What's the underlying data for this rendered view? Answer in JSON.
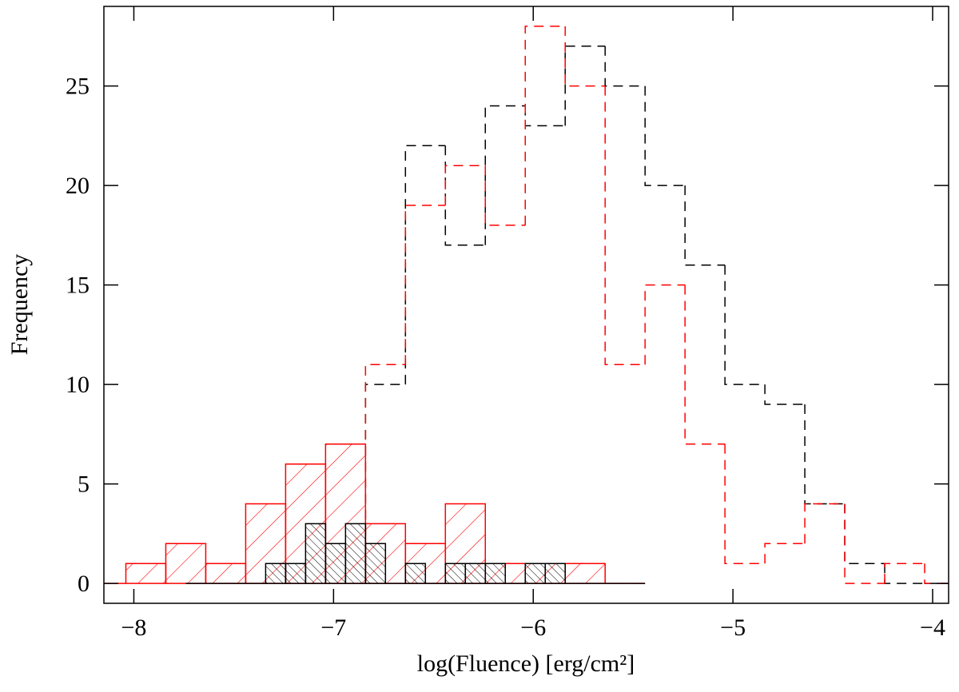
{
  "chart_data": {
    "type": "histogram",
    "x_label": "log(Fluence) [erg/cm²]",
    "y_label": "Frequency",
    "xlim": [
      -8.15,
      -3.92
    ],
    "ylim": [
      -1,
      29
    ],
    "xticks": [
      {
        "value": -8,
        "label": "−8"
      },
      {
        "value": -7,
        "label": "−7"
      },
      {
        "value": -6,
        "label": "−6"
      },
      {
        "value": -5,
        "label": "−5"
      },
      {
        "value": -4,
        "label": "−4"
      }
    ],
    "yticks": [
      0,
      5,
      10,
      15,
      20,
      25
    ],
    "series": [
      {
        "color": "#000000",
        "style": "dashed",
        "bins": [
          -6.84,
          -6.64,
          -6.44,
          -6.24,
          -6.04,
          -5.84,
          -5.64,
          -5.44,
          -5.24,
          -5.04,
          -4.84,
          -4.64,
          -4.44,
          -4.24,
          -4.04,
          -3.84
        ],
        "values": [
          10,
          22,
          17,
          24,
          23,
          27,
          25,
          20,
          16,
          10,
          9,
          4,
          1,
          0,
          0
        ]
      },
      {
        "color": "#ff0000",
        "style": "dashed",
        "bins": [
          -6.84,
          -6.64,
          -6.44,
          -6.24,
          -6.04,
          -5.84,
          -5.64,
          -5.44,
          -5.24,
          -5.04,
          -4.84,
          -4.64,
          -4.44,
          -4.24,
          -4.04,
          -3.84
        ],
        "values": [
          11,
          19,
          21,
          18,
          28,
          25,
          11,
          15,
          7,
          1,
          2,
          4,
          0,
          1,
          0
        ]
      },
      {
        "color": "#ff0000",
        "style": "hatched",
        "bins": [
          -8.24,
          -8.04,
          -7.84,
          -7.64,
          -7.44,
          -7.24,
          -7.04,
          -6.84,
          -6.64,
          -6.44,
          -6.24,
          -6.04,
          -5.84,
          -5.64,
          -5.44
        ],
        "values": [
          0,
          1,
          2,
          1,
          4,
          6,
          7,
          3,
          2,
          4,
          1,
          1,
          1,
          0
        ]
      },
      {
        "color": "#000000",
        "style": "dense-hatched",
        "bins": [
          -7.74,
          -7.64,
          -7.54,
          -7.44,
          -7.34,
          -7.24,
          -7.14,
          -7.04,
          -6.94,
          -6.84,
          -6.74,
          -6.64,
          -6.54,
          -6.44,
          -6.34,
          -6.24,
          -6.14,
          -6.04,
          -5.94,
          -5.84,
          -5.74,
          -5.64,
          -5.54,
          -5.44
        ],
        "values": [
          0,
          0,
          0,
          0,
          1,
          1,
          3,
          2,
          3,
          2,
          0,
          1,
          0,
          1,
          1,
          1,
          0,
          1,
          1,
          0,
          0,
          0,
          0
        ]
      }
    ]
  }
}
